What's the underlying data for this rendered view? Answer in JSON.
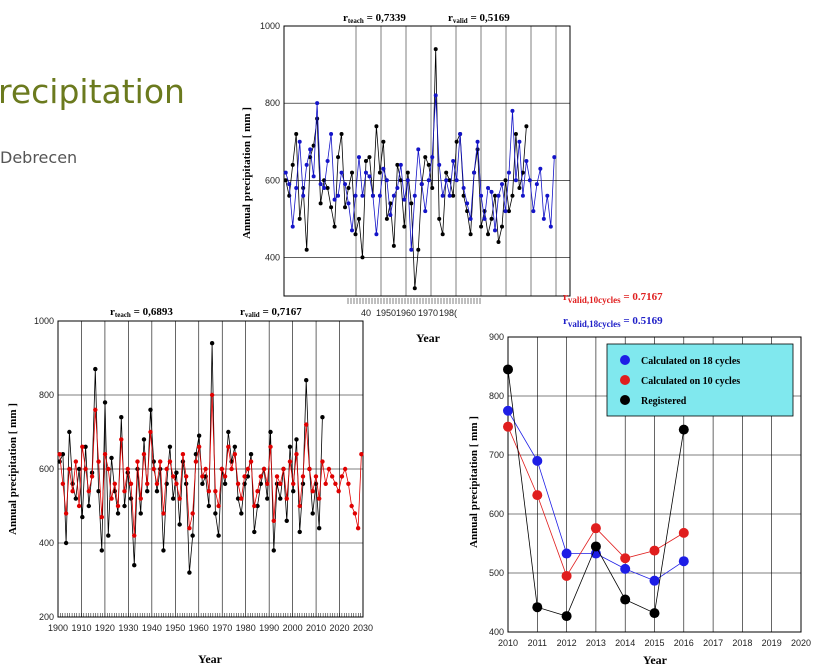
{
  "slide": {
    "title": "recipitation",
    "subtitle": "Debrecen"
  },
  "chart_data": [
    {
      "id": "top",
      "type": "line",
      "title_left": "r",
      "title_left_sub": "teach",
      "title_left_val": " = 0,7339",
      "title_right": "r",
      "title_right_sub": "valid",
      "title_right_val": " = 0,5169",
      "xlabel": "Year",
      "ylabel": "Annual precipitation [ mm ]",
      "ylim": [
        300,
        1000
      ],
      "yticks": [
        400,
        600,
        800,
        1000
      ],
      "xticks_visible": [
        "40",
        "1950",
        "1960",
        "1970",
        "198("
      ],
      "series": [
        {
          "color": "#000000",
          "values": [
            600,
            560,
            640,
            720,
            500,
            580,
            420,
            660,
            690,
            760,
            540,
            600,
            580,
            530,
            480,
            660,
            720,
            530,
            580,
            620,
            460,
            500,
            400,
            650,
            660,
            560,
            740,
            620,
            700,
            500,
            540,
            430,
            640,
            600,
            480,
            620,
            540,
            320,
            420,
            590,
            660,
            640,
            580,
            940,
            500,
            460,
            620,
            600,
            560,
            700,
            720,
            560,
            520,
            460,
            620,
            680,
            480,
            520,
            460,
            500,
            560,
            440,
            480,
            600,
            520,
            560,
            720,
            580,
            620,
            740
          ]
        },
        {
          "color": "#1414c8",
          "values": [
            620,
            590,
            480,
            580,
            700,
            560,
            640,
            680,
            610,
            800,
            590,
            580,
            650,
            720,
            550,
            560,
            620,
            590,
            540,
            470,
            560,
            660,
            560,
            620,
            610,
            560,
            460,
            560,
            630,
            600,
            510,
            560,
            580,
            640,
            550,
            600,
            420,
            560,
            680,
            590,
            520,
            600,
            660,
            820,
            640,
            560,
            600,
            560,
            650,
            600,
            720,
            580,
            540,
            500,
            620,
            700,
            560,
            500,
            580,
            570,
            470,
            560,
            590,
            520,
            620,
            780,
            600,
            700,
            560,
            650,
            600,
            520,
            590,
            630,
            500,
            560,
            480,
            660
          ]
        }
      ]
    },
    {
      "id": "bottom-left",
      "type": "line",
      "title_left": "r",
      "title_left_sub": "teach",
      "title_left_val": " = 0,6893",
      "title_right": "r",
      "title_right_sub": "valid",
      "title_right_val": " = 0,7167",
      "xlabel": "Year",
      "ylabel": "Annual precipitation [ mm ]",
      "xlim": [
        1900,
        2030
      ],
      "ylim": [
        200,
        1000
      ],
      "yticks": [
        200,
        400,
        600,
        800,
        1000
      ],
      "xticks": [
        "1900",
        "1910",
        "1920",
        "1930",
        "1940",
        "1950",
        "1960",
        "1970",
        "1980",
        "1990",
        "2000",
        "2010",
        "2020",
        "2030"
      ],
      "series": [
        {
          "color": "#000000",
          "values": [
            620,
            640,
            400,
            700,
            560,
            520,
            600,
            470,
            660,
            500,
            590,
            870,
            540,
            380,
            780,
            420,
            630,
            540,
            480,
            740,
            500,
            590,
            520,
            340,
            600,
            480,
            680,
            540,
            760,
            620,
            540,
            600,
            380,
            560,
            660,
            520,
            590,
            450,
            620,
            560,
            320,
            420,
            640,
            690,
            560,
            580,
            500,
            940,
            480,
            420,
            600,
            560,
            700,
            620,
            660,
            520,
            480,
            560,
            580,
            640,
            430,
            500,
            560,
            600,
            520,
            700,
            380,
            560,
            520,
            600,
            460,
            660,
            540,
            680,
            430,
            560,
            840,
            600,
            480,
            560,
            440,
            740
          ]
        },
        {
          "color": "#e00000",
          "values": [
            640,
            560,
            480,
            600,
            540,
            620,
            500,
            660,
            600,
            540,
            580,
            760,
            620,
            470,
            640,
            600,
            520,
            560,
            500,
            680,
            540,
            600,
            560,
            420,
            620,
            520,
            640,
            560,
            700,
            600,
            560,
            620,
            480,
            600,
            620,
            580,
            560,
            520,
            640,
            580,
            440,
            480,
            620,
            660,
            580,
            600,
            540,
            800,
            540,
            500,
            600,
            580,
            660,
            600,
            640,
            560,
            520,
            580,
            600,
            620,
            500,
            540,
            580,
            600,
            560,
            660,
            460,
            580,
            560,
            600,
            520,
            620,
            560,
            640,
            500,
            580,
            720,
            600,
            540,
            580,
            520,
            620,
            560,
            600,
            580,
            560,
            540,
            580,
            600,
            560,
            500,
            480,
            440,
            640
          ]
        }
      ]
    },
    {
      "id": "bottom-right",
      "type": "line",
      "annotation_1": "r",
      "annotation_1_sub": "valid,10cycles",
      "annotation_1_val": " = 0.7167",
      "annotation_1_color": "#e02020",
      "annotation_2": "r",
      "annotation_2_sub": "valid,18cycles",
      "annotation_2_val": " = 0.5169",
      "annotation_2_color": "#2020c8",
      "xlabel": "Year",
      "ylabel": "Annual precipitation [ mm ]",
      "xlim": [
        2010,
        2020
      ],
      "ylim": [
        400,
        900
      ],
      "yticks": [
        400,
        500,
        600,
        700,
        800,
        900
      ],
      "xticks": [
        "2010",
        "2011",
        "2012",
        "2013",
        "2014",
        "2015",
        "2016",
        "2017",
        "2018",
        "2019",
        "2020"
      ],
      "legend_placement": "top-right",
      "legend_bg": "#80e8ee",
      "x": [
        2010,
        2011,
        2012,
        2013,
        2014,
        2015,
        2016
      ],
      "series": [
        {
          "name": "Calculated on 18 cycles",
          "color": "#1e1ee6",
          "values": [
            775,
            690,
            533,
            533,
            507,
            487,
            520
          ]
        },
        {
          "name": "Calculated on 10 cycles",
          "color": "#e01e1e",
          "values": [
            748,
            632,
            495,
            576,
            525,
            538,
            568
          ]
        },
        {
          "name": "Registered",
          "color": "#000000",
          "values": [
            845,
            442,
            427,
            545,
            455,
            432,
            743
          ]
        }
      ]
    }
  ]
}
